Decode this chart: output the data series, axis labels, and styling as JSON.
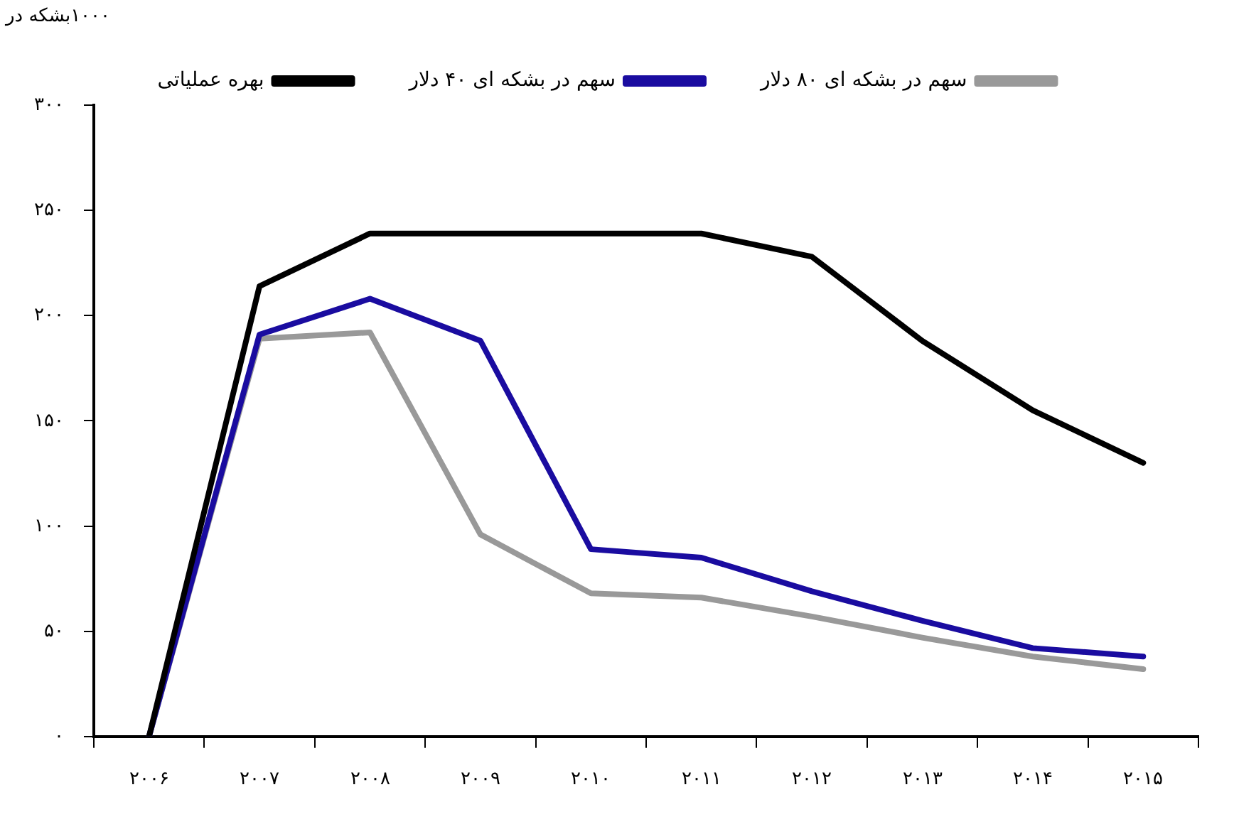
{
  "chart_data": {
    "type": "line",
    "ylabel": "۱۰۰۰بشکه در",
    "categories": [
      "۲۰۰۶",
      "۲۰۰۷",
      "۲۰۰۸",
      "۲۰۰۹",
      "۲۰۱۰",
      "۲۰۱۱",
      "۲۰۱۲",
      "۲۰۱۳",
      "۲۰۱۴",
      "۲۰۱۵"
    ],
    "series": [
      {
        "name": "بهره عملیاتی",
        "color": "#000000",
        "values": [
          0,
          214,
          239,
          239,
          239,
          239,
          228,
          188,
          155,
          130
        ]
      },
      {
        "name": "سهم در بشکه ای ۴۰ دلار",
        "color": "#1a0ca0",
        "values": [
          0,
          191,
          208,
          188,
          89,
          85,
          69,
          55,
          42,
          38
        ]
      },
      {
        "name": "سهم در بشکه ای ۸۰ دلار",
        "color": "#999999",
        "values": [
          0,
          189,
          192,
          96,
          68,
          66,
          57,
          47,
          38,
          32
        ]
      }
    ],
    "ylim": [
      0,
      300
    ],
    "yticks": [
      {
        "value": 0,
        "label": "۰"
      },
      {
        "value": 50,
        "label": "۵۰"
      },
      {
        "value": 100,
        "label": "۱۰۰"
      },
      {
        "value": 150,
        "label": "۱۵۰"
      },
      {
        "value": 200,
        "label": "۲۰۰"
      },
      {
        "value": 250,
        "label": "۲۵۰"
      },
      {
        "value": 300,
        "label": "۳۰۰"
      }
    ],
    "grid": false,
    "legend": "top",
    "marker": "none",
    "line_style": "solid"
  }
}
